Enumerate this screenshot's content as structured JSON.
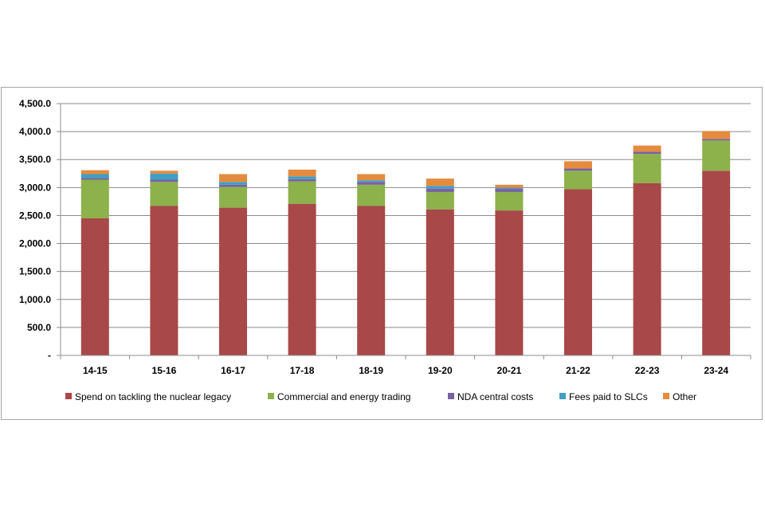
{
  "chart_data": {
    "type": "bar",
    "stacked": true,
    "categories": [
      "14-15",
      "15-16",
      "16-17",
      "17-18",
      "18-19",
      "19-20",
      "20-21",
      "21-22",
      "22-23",
      "23-24"
    ],
    "series": [
      {
        "name": "Spend on tackling the nuclear legacy",
        "color": "#a84848",
        "values": [
          2450,
          2670,
          2640,
          2710,
          2670,
          2610,
          2590,
          2970,
          3080,
          3300
        ]
      },
      {
        "name": "Commercial and energy trading",
        "color": "#8db14b",
        "values": [
          690,
          430,
          370,
          400,
          380,
          310,
          330,
          330,
          520,
          540
        ]
      },
      {
        "name": "NDA central costs",
        "color": "#7a62a0",
        "values": [
          30,
          40,
          40,
          40,
          50,
          60,
          60,
          40,
          40,
          30
        ]
      },
      {
        "name": "Fees paid to SLCs",
        "color": "#3f9fc4",
        "values": [
          70,
          110,
          50,
          50,
          30,
          50,
          20,
          0,
          0,
          0
        ]
      },
      {
        "name": "Other",
        "color": "#e58b3e",
        "values": [
          70,
          50,
          140,
          120,
          110,
          130,
          50,
          130,
          110,
          140
        ]
      }
    ],
    "yticks": [
      "-",
      "500.0",
      "1,000.0",
      "1,500.0",
      "2,000.0",
      "2,500.0",
      "3,000.0",
      "3,500.0",
      "4,000.0",
      "4,500.0"
    ],
    "ylim": [
      0,
      4500
    ],
    "grid": true,
    "legend_position": "bottom"
  }
}
